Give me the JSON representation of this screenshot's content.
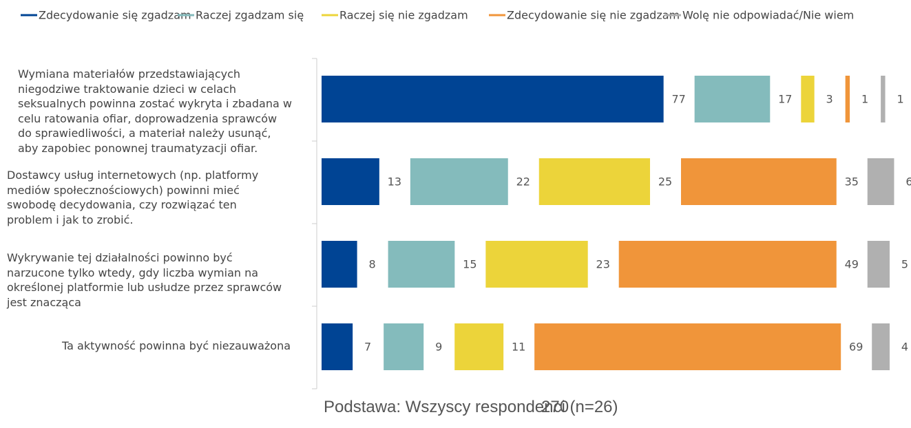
{
  "chart_data": {
    "type": "bar",
    "categories": [
      "Wymiana materiałów przedstawiających niegodziwe traktowanie dzieci w celach seksualnych powinna zostać wykryta i zbadana w celu ratowania ofiar, doprowadzenia sprawców do sprawiedliwości, a materiał należy usunąć, aby zapobiec ponownej traumatyzacji ofiar.",
      "Dostawcy usług internetowych (np. platformy mediów społecznościowych) powinni mieć swobodę decydowania, czy rozwiązać ten problem i jak to zrobić.",
      "Wykrywanie tej działalności powinno być narzucone tylko wtedy, gdy liczba wymian na określonej platformie lub usłudze przez sprawców jest znacząca",
      "Ta aktywność powinna być niezauważona"
    ],
    "series": [
      {
        "name": "Zdecydowanie się zgadzam",
        "color": "#004494",
        "values": [
          77,
          13,
          8,
          7
        ]
      },
      {
        "name": "Raczej zgadzam się",
        "color": "#84bbbc",
        "values": [
          17,
          22,
          15,
          9
        ]
      },
      {
        "name": "Raczej się nie zgadzam",
        "color": "#ecd43a",
        "values": [
          3,
          25,
          23,
          11
        ]
      },
      {
        "name": "Zdecydowanie się nie zgadzam",
        "color": "#f0953a",
        "values": [
          1,
          35,
          49,
          69
        ]
      },
      {
        "name": "Wolę nie odpowiadać/Nie wiem",
        "color": "#b0b0b0",
        "values": [
          1,
          6,
          5,
          4
        ]
      }
    ],
    "footnote": "Podstawa: Wszyscy respondenci (n=26)",
    "footnote_overlay": "270"
  }
}
